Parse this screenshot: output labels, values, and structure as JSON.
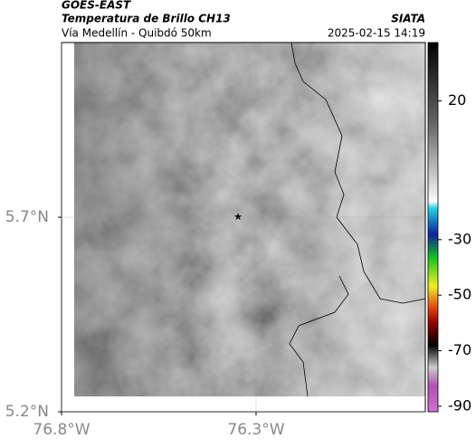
{
  "header": {
    "title": "GOES-EAST",
    "subtitle": "Temperatura de Brillo CH13",
    "region": "Vía Medellín - Quibdó 50km",
    "source": "SIATA",
    "timestamp": "2025-02-15 14:19"
  },
  "map": {
    "xlim": [
      -76.8,
      -75.865
    ],
    "ylim": [
      5.2,
      6.149
    ],
    "xticks": [
      {
        "value": -76.8,
        "label": "76.8°W"
      },
      {
        "value": -76.3,
        "label": "76.3°W"
      }
    ],
    "yticks": [
      {
        "value": 5.7,
        "label": "5.7°N"
      },
      {
        "value": 5.2,
        "label": "5.2°N"
      }
    ]
  },
  "colorbar": {
    "lim": [
      -92,
      41
    ],
    "ticks": [
      20,
      -30,
      -50,
      -70,
      -90
    ]
  }
}
